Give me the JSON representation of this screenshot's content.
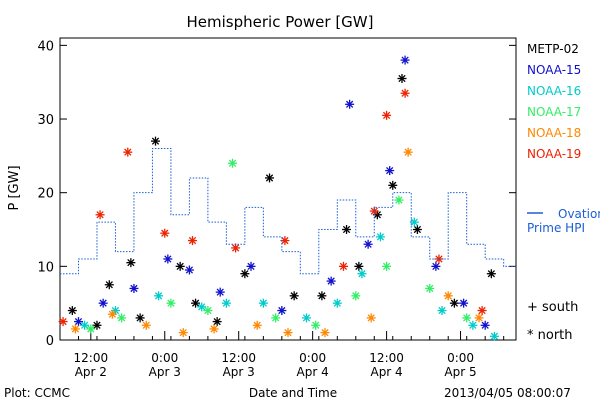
{
  "chart_data": {
    "type": "scatter",
    "title": "Hemispheric Power [GW]",
    "xlabel": "Date and Time",
    "ylabel": "P [GW]",
    "ylim": [
      0,
      41
    ],
    "xlim": [
      "2013-04-02 07:00",
      "2013-04-05 09:00"
    ],
    "yticks": [
      0,
      10,
      20,
      30,
      40
    ],
    "xticks": [
      {
        "at": "2013-04-02 12:00",
        "time": "12:00",
        "date": "Apr 2"
      },
      {
        "at": "2013-04-03 00:00",
        "time": "0:00",
        "date": "Apr 3"
      },
      {
        "at": "2013-04-03 12:00",
        "time": "12:00",
        "date": "Apr 3"
      },
      {
        "at": "2013-04-04 00:00",
        "time": "0:00",
        "date": "Apr 4"
      },
      {
        "at": "2013-04-04 12:00",
        "time": "12:00",
        "date": "Apr 4"
      },
      {
        "at": "2013-04-05 00:00",
        "time": "0:00",
        "date": "Apr 5"
      }
    ],
    "grid": false,
    "legend_position": "right",
    "series": [
      {
        "name": "METP-02",
        "color": "#000000",
        "marker": "star",
        "points": [
          {
            "x": "2013-04-02 09:00",
            "y": 4
          },
          {
            "x": "2013-04-02 13:00",
            "y": 2
          },
          {
            "x": "2013-04-02 15:00",
            "y": 7.5
          },
          {
            "x": "2013-04-02 18:30",
            "y": 10.5
          },
          {
            "x": "2013-04-02 20:00",
            "y": 3
          },
          {
            "x": "2013-04-02 22:30",
            "y": 27
          },
          {
            "x": "2013-04-03 02:30",
            "y": 10
          },
          {
            "x": "2013-04-03 05:00",
            "y": 5
          },
          {
            "x": "2013-04-03 08:30",
            "y": 2.5
          },
          {
            "x": "2013-04-03 13:00",
            "y": 9
          },
          {
            "x": "2013-04-03 17:00",
            "y": 22
          },
          {
            "x": "2013-04-03 21:00",
            "y": 6
          },
          {
            "x": "2013-04-04 01:30",
            "y": 6
          },
          {
            "x": "2013-04-04 05:30",
            "y": 15
          },
          {
            "x": "2013-04-04 07:30",
            "y": 10
          },
          {
            "x": "2013-04-04 10:30",
            "y": 17
          },
          {
            "x": "2013-04-04 13:00",
            "y": 21
          },
          {
            "x": "2013-04-04 14:30",
            "y": 35.5
          },
          {
            "x": "2013-04-04 17:00",
            "y": 15
          },
          {
            "x": "2013-04-04 23:00",
            "y": 5
          },
          {
            "x": "2013-04-05 05:00",
            "y": 9
          }
        ]
      },
      {
        "name": "NOAA-15",
        "color": "#1010cc",
        "marker": "star",
        "points": [
          {
            "x": "2013-04-02 10:00",
            "y": 2.5
          },
          {
            "x": "2013-04-02 14:00",
            "y": 5
          },
          {
            "x": "2013-04-02 19:00",
            "y": 7
          },
          {
            "x": "2013-04-03 00:30",
            "y": 11
          },
          {
            "x": "2013-04-03 04:00",
            "y": 9.5
          },
          {
            "x": "2013-04-03 09:00",
            "y": 6.5
          },
          {
            "x": "2013-04-03 14:00",
            "y": 10
          },
          {
            "x": "2013-04-03 19:00",
            "y": 4
          },
          {
            "x": "2013-04-04 03:00",
            "y": 8
          },
          {
            "x": "2013-04-04 06:00",
            "y": 32
          },
          {
            "x": "2013-04-04 09:00",
            "y": 13
          },
          {
            "x": "2013-04-04 12:30",
            "y": 23
          },
          {
            "x": "2013-04-04 15:00",
            "y": 38
          },
          {
            "x": "2013-04-04 20:00",
            "y": 10
          },
          {
            "x": "2013-04-05 00:30",
            "y": 5
          },
          {
            "x": "2013-04-05 04:00",
            "y": 2
          }
        ]
      },
      {
        "name": "NOAA-16",
        "color": "#00cccc",
        "marker": "star",
        "points": [
          {
            "x": "2013-04-02 11:00",
            "y": 2
          },
          {
            "x": "2013-04-02 16:00",
            "y": 4
          },
          {
            "x": "2013-04-02 23:00",
            "y": 6
          },
          {
            "x": "2013-04-03 06:00",
            "y": 4.5
          },
          {
            "x": "2013-04-03 10:00",
            "y": 5
          },
          {
            "x": "2013-04-03 16:00",
            "y": 5
          },
          {
            "x": "2013-04-03 23:00",
            "y": 3
          },
          {
            "x": "2013-04-04 04:00",
            "y": 5
          },
          {
            "x": "2013-04-04 08:00",
            "y": 9
          },
          {
            "x": "2013-04-04 11:00",
            "y": 14
          },
          {
            "x": "2013-04-04 16:30",
            "y": 16
          },
          {
            "x": "2013-04-04 21:00",
            "y": 4
          },
          {
            "x": "2013-04-05 02:00",
            "y": 2
          },
          {
            "x": "2013-04-05 05:30",
            "y": 0.5
          }
        ]
      },
      {
        "name": "NOAA-17",
        "color": "#33ee66",
        "marker": "star",
        "points": [
          {
            "x": "2013-04-02 12:00",
            "y": 1.5
          },
          {
            "x": "2013-04-02 17:00",
            "y": 3
          },
          {
            "x": "2013-04-03 01:00",
            "y": 5
          },
          {
            "x": "2013-04-03 07:00",
            "y": 4
          },
          {
            "x": "2013-04-03 11:00",
            "y": 24
          },
          {
            "x": "2013-04-03 18:00",
            "y": 3
          },
          {
            "x": "2013-04-04 00:30",
            "y": 2
          },
          {
            "x": "2013-04-04 07:00",
            "y": 6
          },
          {
            "x": "2013-04-04 12:00",
            "y": 10
          },
          {
            "x": "2013-04-04 14:00",
            "y": 19
          },
          {
            "x": "2013-04-04 19:00",
            "y": 7
          },
          {
            "x": "2013-04-05 01:00",
            "y": 3
          }
        ]
      },
      {
        "name": "NOAA-18",
        "color": "#ff8800",
        "marker": "star",
        "points": [
          {
            "x": "2013-04-02 09:30",
            "y": 1.5
          },
          {
            "x": "2013-04-02 15:30",
            "y": 3.5
          },
          {
            "x": "2013-04-02 21:00",
            "y": 2
          },
          {
            "x": "2013-04-03 03:00",
            "y": 1
          },
          {
            "x": "2013-04-03 08:00",
            "y": 1.5
          },
          {
            "x": "2013-04-03 15:00",
            "y": 2
          },
          {
            "x": "2013-04-03 20:00",
            "y": 1
          },
          {
            "x": "2013-04-04 02:00",
            "y": 1
          },
          {
            "x": "2013-04-04 09:30",
            "y": 3
          },
          {
            "x": "2013-04-04 15:30",
            "y": 25.5
          },
          {
            "x": "2013-04-04 22:00",
            "y": 6
          },
          {
            "x": "2013-04-05 03:00",
            "y": 3
          }
        ]
      },
      {
        "name": "NOAA-19",
        "color": "#ee2200",
        "marker": "star",
        "points": [
          {
            "x": "2013-04-02 07:30",
            "y": 2.5
          },
          {
            "x": "2013-04-02 13:30",
            "y": 17
          },
          {
            "x": "2013-04-02 18:00",
            "y": 25.5
          },
          {
            "x": "2013-04-03 00:00",
            "y": 14.5
          },
          {
            "x": "2013-04-03 04:30",
            "y": 13.5
          },
          {
            "x": "2013-04-03 11:30",
            "y": 12.5
          },
          {
            "x": "2013-04-03 19:30",
            "y": 13.5
          },
          {
            "x": "2013-04-04 05:00",
            "y": 10
          },
          {
            "x": "2013-04-04 10:00",
            "y": 17.5
          },
          {
            "x": "2013-04-04 12:00",
            "y": 30.5
          },
          {
            "x": "2013-04-04 15:00",
            "y": 33.5
          },
          {
            "x": "2013-04-04 20:30",
            "y": 11
          },
          {
            "x": "2013-04-05 03:30",
            "y": 4
          }
        ]
      },
      {
        "name": "Ovation Prime HPI",
        "color": "#1a5fd6",
        "marker": "step",
        "points": [
          {
            "x": "2013-04-02 07:00",
            "y": 9
          },
          {
            "x": "2013-04-02 10:00",
            "y": 11
          },
          {
            "x": "2013-04-02 13:00",
            "y": 16
          },
          {
            "x": "2013-04-02 16:00",
            "y": 12
          },
          {
            "x": "2013-04-02 19:00",
            "y": 20
          },
          {
            "x": "2013-04-02 22:00",
            "y": 26
          },
          {
            "x": "2013-04-03 01:00",
            "y": 17
          },
          {
            "x": "2013-04-03 04:00",
            "y": 22
          },
          {
            "x": "2013-04-03 07:00",
            "y": 16
          },
          {
            "x": "2013-04-03 10:00",
            "y": 13
          },
          {
            "x": "2013-04-03 13:00",
            "y": 18
          },
          {
            "x": "2013-04-03 16:00",
            "y": 14
          },
          {
            "x": "2013-04-03 19:00",
            "y": 12
          },
          {
            "x": "2013-04-03 22:00",
            "y": 9
          },
          {
            "x": "2013-04-04 01:00",
            "y": 15
          },
          {
            "x": "2013-04-04 04:00",
            "y": 19
          },
          {
            "x": "2013-04-04 07:00",
            "y": 14
          },
          {
            "x": "2013-04-04 10:00",
            "y": 18
          },
          {
            "x": "2013-04-04 13:00",
            "y": 20
          },
          {
            "x": "2013-04-04 16:00",
            "y": 14
          },
          {
            "x": "2013-04-04 19:00",
            "y": 11
          },
          {
            "x": "2013-04-04 22:00",
            "y": 20
          },
          {
            "x": "2013-04-05 01:00",
            "y": 13
          },
          {
            "x": "2013-04-05 04:00",
            "y": 11
          },
          {
            "x": "2013-04-05 07:00",
            "y": 10
          }
        ]
      }
    ],
    "marker_key": [
      {
        "symbol": "+",
        "label": "south"
      },
      {
        "symbol": "*",
        "label": "north"
      }
    ]
  },
  "footer": {
    "plot_credit": "Plot: CCMC",
    "timestamp": "2013/04/05 08:00:07"
  },
  "legend": {
    "ovation_line1": "Ovation",
    "ovation_line2": "Prime HPI"
  }
}
